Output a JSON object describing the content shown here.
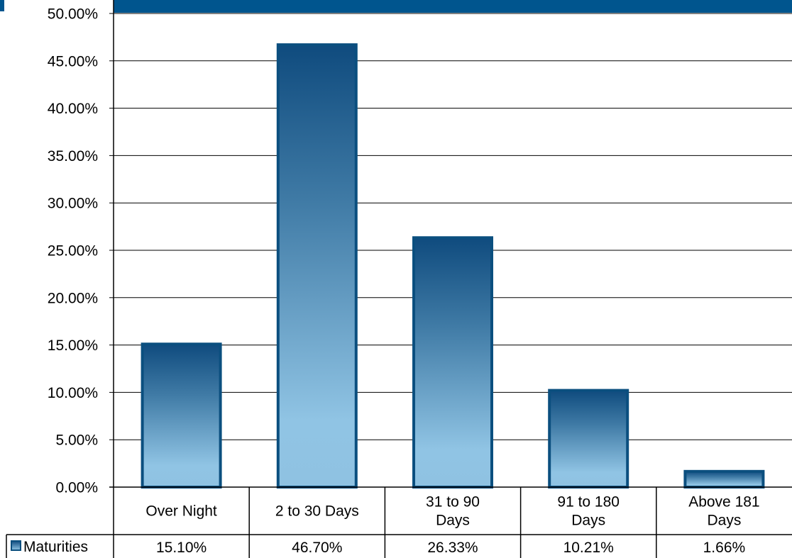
{
  "chart_data": {
    "type": "bar",
    "categories": [
      [
        "Over Night"
      ],
      [
        "2 to 30 Days"
      ],
      [
        "31 to 90",
        "Days"
      ],
      [
        "91 to 180",
        "Days"
      ],
      [
        "Above 181",
        "Days"
      ]
    ],
    "series": [
      {
        "name": "Maturities",
        "values": [
          15.1,
          46.7,
          26.33,
          10.21,
          1.66
        ],
        "table_labels": [
          "15.10%",
          "46.70%",
          "26.33%",
          "10.21%",
          "1.66%"
        ]
      }
    ],
    "y_ticks": [
      "0.00%",
      "5.00%",
      "10.00%",
      "15.00%",
      "20.00%",
      "25.00%",
      "30.00%",
      "35.00%",
      "40.00%",
      "45.00%",
      "50.00%"
    ],
    "ylim": [
      0,
      50
    ],
    "grid": true,
    "legend_placement": "data-table",
    "colors": {
      "bar_top": "#0f4b7e",
      "bar_bottom": "#90c4e4",
      "bar_border": "#0b4f7f",
      "header_band": "#00558e"
    }
  }
}
